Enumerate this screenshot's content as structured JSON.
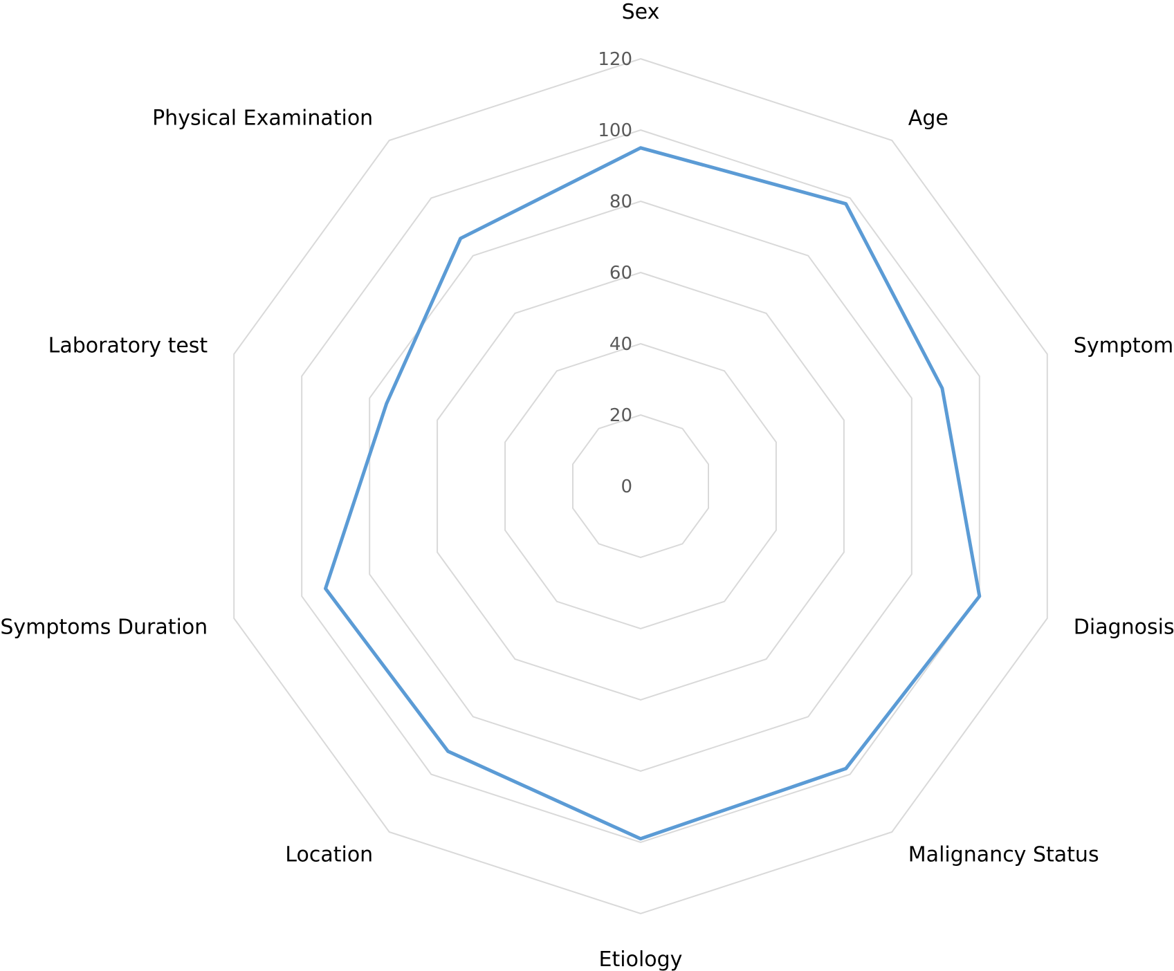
{
  "chart_data": {
    "type": "radar",
    "title": "",
    "categories": [
      "Sex",
      "Age",
      "Symptom",
      "Diagnosis",
      "Malignancy Status",
      "Etiology",
      "Location",
      "Symptoms Duration",
      "Laboratory test",
      "Physical Examination"
    ],
    "series": [
      {
        "color": "#5b9bd5",
        "values": [
          95,
          98,
          89,
          100,
          98,
          99,
          92,
          93,
          75,
          86
        ]
      }
    ],
    "range": [
      0,
      120
    ],
    "ticks": [
      "0",
      "20",
      "40",
      "60",
      "80",
      "100",
      "120"
    ],
    "tick_values": [
      0,
      20,
      40,
      60,
      80,
      100,
      120
    ],
    "grid": true,
    "legend": "none"
  }
}
